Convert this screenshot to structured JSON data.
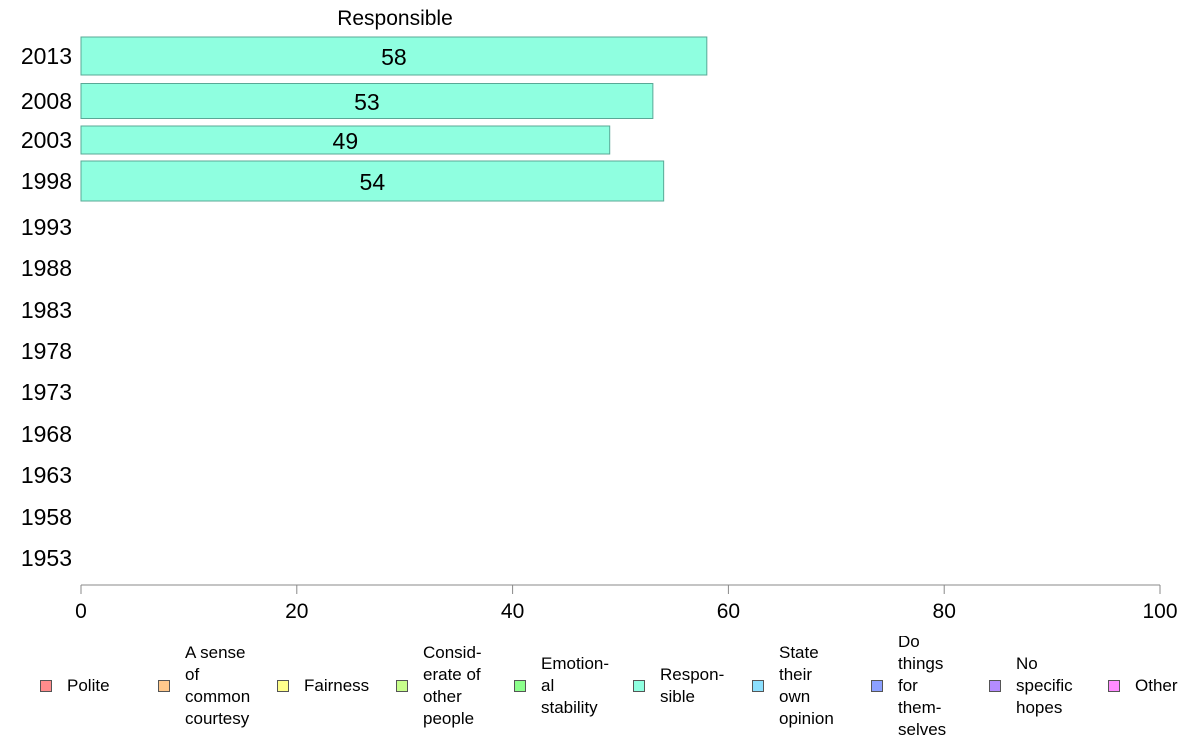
{
  "chart_data": {
    "type": "bar",
    "orientation": "horizontal",
    "title": "Responsible",
    "categories": [
      "2013",
      "2008",
      "2003",
      "1998",
      "1993",
      "1988",
      "1983",
      "1978",
      "1973",
      "1968",
      "1963",
      "1958",
      "1953"
    ],
    "series": [
      {
        "name": "Responsible",
        "color": "#8fffe0",
        "values": [
          58,
          53,
          49,
          54,
          null,
          null,
          null,
          null,
          null,
          null,
          null,
          null,
          null
        ]
      }
    ],
    "xlim": [
      0,
      100
    ],
    "xticks": [
      "0",
      "20",
      "40",
      "60",
      "80",
      "100"
    ],
    "grid": false,
    "legend_placement": "bottom"
  },
  "legend": {
    "items": [
      {
        "label": "Polite",
        "color": "#ff8c8c"
      },
      {
        "label": "A sense\nof\ncommon\ncourtesy",
        "color": "#ffc88c"
      },
      {
        "label": "Fairness",
        "color": "#ffff8c"
      },
      {
        "label": "Consid-\nerate of\nother\npeople",
        "color": "#c8ff8c"
      },
      {
        "label": "Emotion-\nal\nstability",
        "color": "#8cff8c"
      },
      {
        "label": "Respon-\nsible",
        "color": "#8fffe0"
      },
      {
        "label": "State\ntheir\nown\nopinion",
        "color": "#8ce0ff"
      },
      {
        "label": "Do\nthings\nfor\nthem-\nselves",
        "color": "#8ca0ff"
      },
      {
        "label": "No\nspecific\nhopes",
        "color": "#b48cff"
      },
      {
        "label": "Other",
        "color": "#ff8cff"
      }
    ]
  }
}
